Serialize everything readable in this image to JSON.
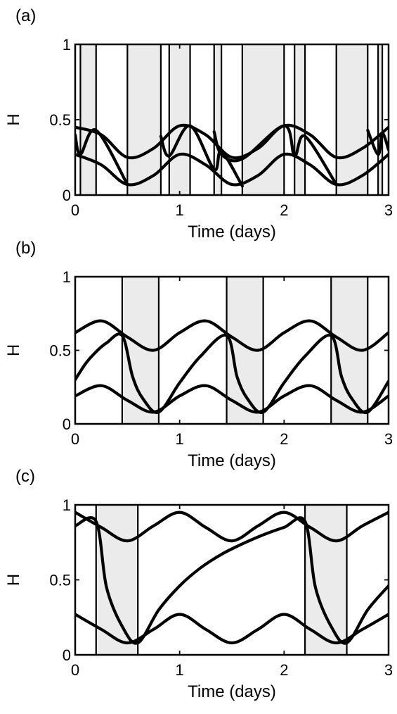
{
  "chart_data": [
    {
      "type": "line",
      "panel_label": "(a)",
      "xlabel": "Time (days)",
      "ylabel": "H",
      "xlim": [
        0,
        3
      ],
      "ylim": [
        0,
        1
      ],
      "xticks": [
        "0",
        "1",
        "2",
        "3"
      ],
      "yticks": [
        "0",
        "0.5",
        "1"
      ],
      "shaded_intervals": [
        [
          0.05,
          0.2
        ],
        [
          0.5,
          0.82
        ],
        [
          0.9,
          1.1
        ],
        [
          1.33,
          1.4
        ],
        [
          1.6,
          2.0
        ],
        [
          2.1,
          2.2
        ],
        [
          2.5,
          2.8
        ],
        [
          2.9,
          2.94
        ]
      ],
      "boundaries": [
        0.05,
        0.2,
        0.5,
        0.82,
        0.9,
        1.1,
        1.33,
        1.4,
        1.6,
        2.0,
        2.1,
        2.2,
        2.5,
        2.8,
        2.9,
        2.94
      ],
      "series": [
        {
          "x": [
            0,
            0.25,
            0.5,
            0.75,
            1.0,
            1.25,
            1.5,
            1.75,
            2.0,
            2.25,
            2.5,
            2.75,
            3.0
          ],
          "y": [
            0.45,
            0.4,
            0.25,
            0.31,
            0.46,
            0.4,
            0.25,
            0.31,
            0.46,
            0.4,
            0.25,
            0.31,
            0.45
          ]
        },
        {
          "x": [
            0,
            0.25,
            0.5,
            0.75,
            1.0,
            1.25,
            1.5,
            1.75,
            2.0,
            2.25,
            2.5,
            2.75,
            3.0
          ],
          "y": [
            0.27,
            0.2,
            0.07,
            0.13,
            0.27,
            0.2,
            0.07,
            0.13,
            0.27,
            0.2,
            0.07,
            0.13,
            0.27
          ]
        },
        {
          "x": [
            0,
            0.05,
            0.2,
            0.5
          ],
          "y": [
            0.4,
            0.27,
            0.43,
            0.07
          ]
        },
        {
          "x": [
            0.82,
            0.9,
            1.1,
            1.33,
            1.4,
            1.6
          ],
          "y": [
            0.39,
            0.26,
            0.46,
            0.17,
            0.29,
            0.06
          ]
        },
        {
          "x": [
            1.33,
            1.4,
            1.6,
            2.0,
            2.1,
            2.2,
            2.5
          ],
          "y": [
            0.42,
            0.27,
            0.24,
            0.46,
            0.26,
            0.39,
            0.07
          ]
        },
        {
          "x": [
            2.8,
            2.9,
            2.94,
            3.0
          ],
          "y": [
            0.43,
            0.27,
            0.41,
            0.3
          ]
        }
      ]
    },
    {
      "type": "line",
      "panel_label": "(b)",
      "xlabel": "Time (days)",
      "ylabel": "H",
      "xlim": [
        0,
        3
      ],
      "ylim": [
        0,
        1
      ],
      "xticks": [
        "0",
        "1",
        "2",
        "3"
      ],
      "yticks": [
        "0",
        "0.5",
        "1"
      ],
      "shaded_intervals": [
        [
          0.45,
          0.8
        ],
        [
          1.45,
          1.8
        ],
        [
          2.45,
          2.8
        ]
      ],
      "boundaries": [
        0.45,
        0.8,
        1.45,
        1.8,
        2.45,
        2.8
      ],
      "series": [
        {
          "x": [
            0,
            0.25,
            0.5,
            0.75,
            1.0,
            1.25,
            1.5,
            1.75,
            2.0,
            2.25,
            2.5,
            2.75,
            3.0
          ],
          "y": [
            0.62,
            0.7,
            0.59,
            0.5,
            0.62,
            0.7,
            0.59,
            0.5,
            0.62,
            0.7,
            0.59,
            0.5,
            0.62
          ]
        },
        {
          "x": [
            0,
            0.25,
            0.5,
            0.75,
            1.0,
            1.25,
            1.5,
            1.75,
            2.0,
            2.25,
            2.5,
            2.75,
            3.0
          ],
          "y": [
            0.19,
            0.26,
            0.16,
            0.08,
            0.19,
            0.26,
            0.16,
            0.08,
            0.19,
            0.26,
            0.16,
            0.08,
            0.19
          ]
        },
        {
          "x": [
            0,
            0.1,
            0.2,
            0.3,
            0.45,
            0.55,
            0.65,
            0.8,
            1.0,
            1.2,
            1.45,
            1.55,
            1.65,
            1.8,
            2.0,
            2.2,
            2.45,
            2.55,
            2.65,
            2.8,
            3.0
          ],
          "y": [
            0.3,
            0.41,
            0.49,
            0.55,
            0.6,
            0.32,
            0.17,
            0.08,
            0.28,
            0.46,
            0.6,
            0.32,
            0.17,
            0.08,
            0.28,
            0.46,
            0.6,
            0.32,
            0.17,
            0.08,
            0.29
          ]
        }
      ]
    },
    {
      "type": "line",
      "panel_label": "(c)",
      "xlabel": "Time (days)",
      "ylabel": "H",
      "xlim": [
        0,
        3
      ],
      "ylim": [
        0,
        1
      ],
      "xticks": [
        "0",
        "1",
        "2",
        "3"
      ],
      "yticks": [
        "0",
        "0.5",
        "1"
      ],
      "shaded_intervals": [
        [
          0.2,
          0.6
        ],
        [
          2.2,
          2.6
        ]
      ],
      "boundaries": [
        0.2,
        0.6,
        2.2,
        2.6
      ],
      "series": [
        {
          "x": [
            0,
            0.25,
            0.5,
            0.75,
            1.0,
            1.25,
            1.5,
            1.75,
            2.0,
            2.25,
            2.5,
            2.75,
            3.0
          ],
          "y": [
            0.95,
            0.85,
            0.76,
            0.86,
            0.95,
            0.85,
            0.76,
            0.86,
            0.95,
            0.85,
            0.76,
            0.86,
            0.95
          ]
        },
        {
          "x": [
            0,
            0.25,
            0.5,
            0.75,
            1.0,
            1.25,
            1.5,
            1.75,
            2.0,
            2.25,
            2.5,
            2.75,
            3.0
          ],
          "y": [
            0.27,
            0.17,
            0.08,
            0.17,
            0.27,
            0.17,
            0.08,
            0.17,
            0.27,
            0.17,
            0.08,
            0.17,
            0.27
          ]
        },
        {
          "x": [
            0,
            0.2,
            0.3,
            0.45,
            0.6,
            0.8,
            1.0,
            1.2,
            1.4,
            1.6,
            1.8,
            2.0,
            2.2,
            2.3,
            2.45,
            2.6,
            2.8,
            3.0
          ],
          "y": [
            0.86,
            0.89,
            0.45,
            0.19,
            0.08,
            0.3,
            0.46,
            0.58,
            0.67,
            0.74,
            0.8,
            0.85,
            0.89,
            0.45,
            0.19,
            0.08,
            0.3,
            0.46
          ]
        }
      ]
    }
  ]
}
